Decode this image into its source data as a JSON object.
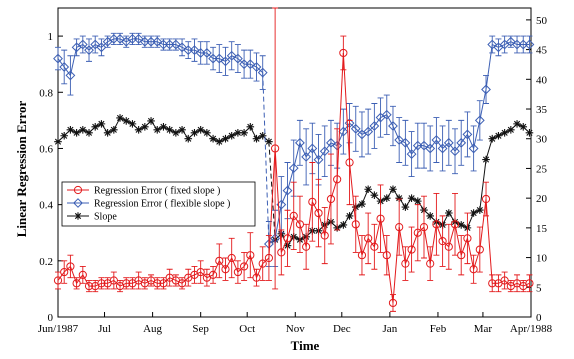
{
  "chart_data": {
    "type": "line",
    "xlabel": "Time",
    "ylabel": "Linear Regression Error",
    "x_tick_labels": [
      "Jun/1987",
      "Jul",
      "Aug",
      "Sep",
      "Oct",
      "Nov",
      "Dec",
      "Jan",
      "Feb",
      "Mar",
      "Apr/1988"
    ],
    "x": [
      "1987-06-01",
      "1987-06-05",
      "1987-06-09",
      "1987-06-13",
      "1987-06-17",
      "1987-06-21",
      "1987-06-25",
      "1987-06-29",
      "1987-07-03",
      "1987-07-07",
      "1987-07-11",
      "1987-07-15",
      "1987-07-19",
      "1987-07-23",
      "1987-07-27",
      "1987-07-31",
      "1987-08-04",
      "1987-08-08",
      "1987-08-12",
      "1987-08-16",
      "1987-08-20",
      "1987-08-24",
      "1987-08-28",
      "1987-09-01",
      "1987-09-05",
      "1987-09-09",
      "1987-09-13",
      "1987-09-17",
      "1987-09-21",
      "1987-09-25",
      "1987-09-29",
      "1987-10-03",
      "1987-10-07",
      "1987-10-11",
      "1987-10-15",
      "1987-10-19",
      "1987-10-23",
      "1987-10-27",
      "1987-10-31",
      "1987-11-04",
      "1987-11-08",
      "1987-11-12",
      "1987-11-16",
      "1987-11-20",
      "1987-11-24",
      "1987-11-28",
      "1987-12-02",
      "1987-12-06",
      "1987-12-10",
      "1987-12-14",
      "1987-12-18",
      "1987-12-22",
      "1987-12-26",
      "1987-12-30",
      "1988-01-03",
      "1988-01-07",
      "1988-01-11",
      "1988-01-15",
      "1988-01-19",
      "1988-01-23",
      "1988-01-27",
      "1988-01-31",
      "1988-02-04",
      "1988-02-08",
      "1988-02-12",
      "1988-02-16",
      "1988-02-20",
      "1988-02-24",
      "1988-02-28",
      "1988-03-03",
      "1988-03-07",
      "1988-03-11",
      "1988-03-15",
      "1988-03-19",
      "1988-03-23",
      "1988-03-27",
      "1988-03-31"
    ],
    "left_ylim": [
      0,
      1.1
    ],
    "left_yticks": [
      0,
      0.2,
      0.4,
      0.6,
      0.8,
      1
    ],
    "right_ylim": [
      0,
      52
    ],
    "right_yticks": [
      0,
      5,
      10,
      15,
      20,
      25,
      30,
      35,
      40,
      45,
      50
    ],
    "grid": false,
    "legend_position": "middle-left",
    "series": [
      {
        "name": "Regression Error ( fixed slope )",
        "axis": "left",
        "color": "#e31a1c",
        "marker": "circle",
        "values": [
          0.13,
          0.16,
          0.18,
          0.12,
          0.15,
          0.11,
          0.11,
          0.12,
          0.12,
          0.13,
          0.11,
          0.12,
          0.12,
          0.13,
          0.12,
          0.13,
          0.12,
          0.12,
          0.14,
          0.13,
          0.12,
          0.14,
          0.15,
          0.16,
          0.14,
          0.15,
          0.2,
          0.17,
          0.21,
          0.16,
          0.18,
          0.22,
          0.14,
          0.19,
          0.21,
          0.6,
          0.23,
          0.28,
          0.36,
          0.33,
          0.25,
          0.41,
          0.37,
          0.29,
          0.42,
          0.49,
          0.94,
          0.55,
          0.33,
          0.22,
          0.28,
          0.25,
          0.35,
          0.22,
          0.05,
          0.32,
          0.19,
          0.24,
          0.3,
          0.32,
          0.19,
          0.33,
          0.27,
          0.25,
          0.33,
          0.22,
          0.28,
          0.17,
          0.24,
          0.42,
          0.12,
          0.12,
          0.13,
          0.11,
          0.12,
          0.11,
          0.12
        ],
        "errors": [
          0.03,
          0.04,
          0.04,
          0.02,
          0.03,
          0.02,
          0.02,
          0.02,
          0.02,
          0.03,
          0.02,
          0.02,
          0.02,
          0.03,
          0.02,
          0.02,
          0.02,
          0.02,
          0.03,
          0.02,
          0.02,
          0.03,
          0.03,
          0.04,
          0.03,
          0.03,
          0.06,
          0.04,
          0.07,
          0.04,
          0.05,
          0.08,
          0.03,
          0.06,
          0.08,
          0.5,
          0.08,
          0.1,
          0.12,
          0.1,
          0.08,
          0.14,
          0.12,
          0.1,
          0.16,
          0.18,
          0.06,
          0.15,
          0.1,
          0.07,
          0.09,
          0.08,
          0.12,
          0.07,
          0.03,
          0.1,
          0.06,
          0.08,
          0.1,
          0.11,
          0.06,
          0.11,
          0.09,
          0.08,
          0.11,
          0.07,
          0.09,
          0.05,
          0.08,
          0.06,
          0.03,
          0.03,
          0.03,
          0.02,
          0.03,
          0.02,
          0.03
        ]
      },
      {
        "name": "Regression Error ( flexible slope )",
        "axis": "left",
        "color": "#3c5fb4",
        "marker": "diamond",
        "values": [
          0.92,
          0.89,
          0.86,
          0.96,
          0.97,
          0.95,
          0.97,
          0.96,
          0.98,
          0.99,
          0.99,
          0.98,
          0.99,
          0.99,
          0.98,
          0.98,
          0.98,
          0.97,
          0.97,
          0.97,
          0.96,
          0.95,
          0.95,
          0.94,
          0.94,
          0.92,
          0.92,
          0.91,
          0.93,
          0.92,
          0.9,
          0.9,
          0.89,
          0.87,
          0.26,
          0.28,
          0.4,
          0.45,
          0.53,
          0.62,
          0.57,
          0.6,
          0.56,
          0.59,
          0.62,
          0.61,
          0.66,
          0.69,
          0.67,
          0.65,
          0.66,
          0.68,
          0.71,
          0.72,
          0.68,
          0.63,
          0.62,
          0.58,
          0.61,
          0.61,
          0.6,
          0.63,
          0.6,
          0.62,
          0.59,
          0.62,
          0.65,
          0.6,
          0.7,
          0.81,
          0.97,
          0.96,
          0.97,
          0.98,
          0.97,
          0.97,
          0.97
        ],
        "errors": [
          0.04,
          0.06,
          0.07,
          0.03,
          0.03,
          0.04,
          0.03,
          0.03,
          0.02,
          0.02,
          0.02,
          0.02,
          0.02,
          0.02,
          0.02,
          0.02,
          0.02,
          0.02,
          0.02,
          0.02,
          0.03,
          0.03,
          0.04,
          0.04,
          0.04,
          0.04,
          0.05,
          0.05,
          0.05,
          0.05,
          0.05,
          0.05,
          0.05,
          0.06,
          0.08,
          0.1,
          0.1,
          0.1,
          0.1,
          0.08,
          0.1,
          0.09,
          0.09,
          0.09,
          0.08,
          0.08,
          0.08,
          0.07,
          0.08,
          0.08,
          0.08,
          0.08,
          0.07,
          0.07,
          0.07,
          0.08,
          0.08,
          0.08,
          0.08,
          0.08,
          0.08,
          0.08,
          0.08,
          0.08,
          0.08,
          0.08,
          0.08,
          0.08,
          0.07,
          0.05,
          0.03,
          0.03,
          0.03,
          0.02,
          0.03,
          0.03,
          0.03
        ]
      },
      {
        "name": "Slope",
        "axis": "right",
        "color": "#111111",
        "marker": "asterisk",
        "values": [
          29.5,
          30.5,
          31.5,
          31.0,
          31.5,
          31.0,
          32.0,
          32.5,
          31.0,
          31.5,
          33.5,
          33.0,
          32.5,
          31.5,
          32.0,
          33.0,
          31.5,
          32.0,
          31.5,
          31.0,
          31.5,
          30.0,
          31.0,
          31.5,
          31.0,
          30.0,
          29.5,
          30.0,
          30.5,
          31.0,
          31.0,
          32.0,
          30.0,
          30.5,
          29.5,
          13.0,
          14.0,
          12.0,
          13.5,
          13.0,
          13.5,
          14.5,
          14.5,
          15.5,
          16.0,
          15.0,
          15.5,
          17.0,
          18.5,
          19.0,
          21.5,
          20.5,
          19.5,
          20.0,
          21.5,
          20.0,
          18.5,
          20.0,
          19.5,
          18.0,
          17.0,
          16.0,
          15.5,
          17.5,
          16.0,
          15.5,
          15.0,
          17.5,
          18.0,
          26.5,
          30.0,
          30.5,
          31.0,
          31.5,
          32.5,
          32.0,
          31.0
        ]
      }
    ]
  }
}
